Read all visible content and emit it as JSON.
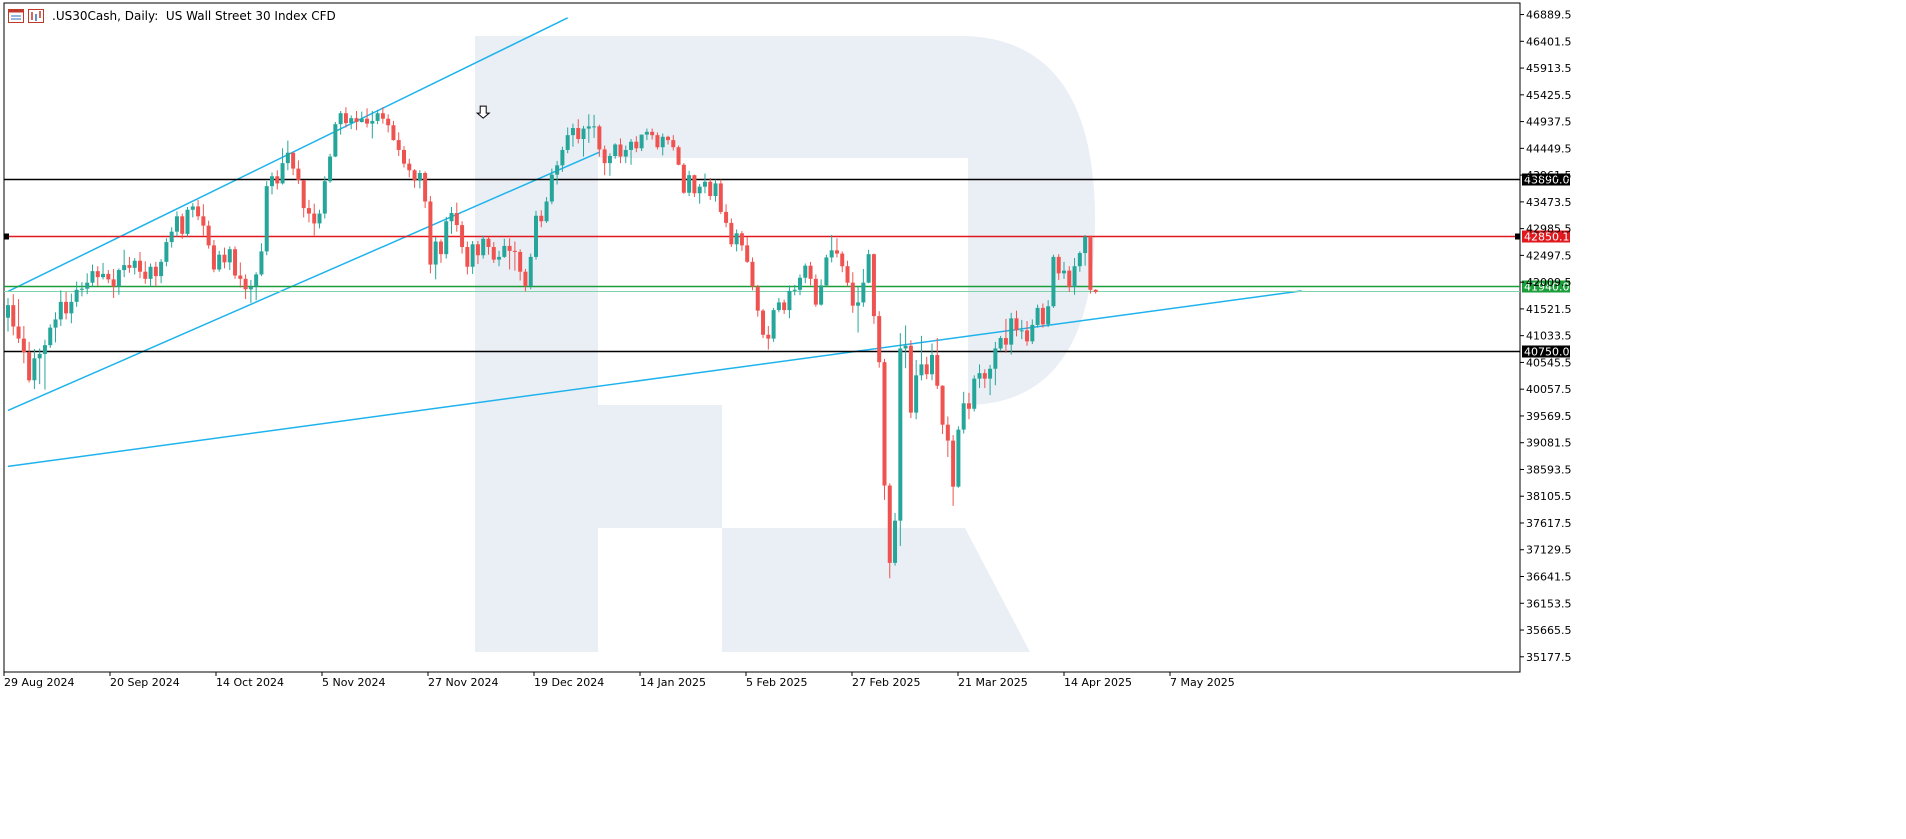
{
  "header": {
    "symbol": ".US30Cash",
    "timeframe": "Daily:",
    "description": "US Wall Street 30 Index CFD",
    "icons": [
      "chart-window-icon",
      "bar-chart-icon"
    ]
  },
  "colors": {
    "bull": "#26a69a",
    "bear": "#ef5350",
    "trend": "#1eb3ec",
    "support_green": "#1b9e3a",
    "support_green_light": "#7ed3a8",
    "level_red": "#e1191f",
    "level_black": "#000000",
    "watermark": "#eaeef5",
    "axis_text": "#000000"
  },
  "chart_data": {
    "type": "candlestick",
    "title": ".US30Cash, Daily:  US Wall Street 30 Index CFD",
    "ylim": [
      34900,
      47100
    ],
    "y_ticks": [
      "46889.5",
      "46401.5",
      "45913.5",
      "45425.5",
      "44937.5",
      "44449.5",
      "43961.5",
      "43473.5",
      "42985.5",
      "42497.5",
      "42009.5",
      "41521.5",
      "41033.5",
      "40545.5",
      "40057.5",
      "39569.5",
      "39081.5",
      "38593.5",
      "38105.5",
      "37617.5",
      "37129.5",
      "36641.5",
      "36153.5",
      "35665.5",
      "35177.5"
    ],
    "x_ticks": [
      "29 Aug 2024",
      "20 Sep 2024",
      "14 Oct 2024",
      "5 Nov 2024",
      "27 Nov 2024",
      "19 Dec 2024",
      "14 Jan 2025",
      "5 Feb 2025",
      "27 Feb 2025",
      "21 Mar 2025",
      "14 Apr 2025",
      "7 May 2025"
    ],
    "horizontal_levels": [
      {
        "value": 43890.0,
        "label": "43890.0",
        "color": "black"
      },
      {
        "value": 42850.1,
        "label": "42850.1",
        "color": "red"
      },
      {
        "value": 41940.0,
        "label": "41940.0",
        "color": "green"
      },
      {
        "value": 40750.0,
        "label": "40750.0",
        "color": "black"
      }
    ],
    "trendlines": [
      {
        "name": "channel-upper",
        "from": [
          0,
          41840
        ],
        "to": [
          106,
          46830
        ]
      },
      {
        "name": "channel-lower",
        "from": [
          0,
          39670
        ],
        "to": [
          112,
          44380
        ]
      },
      {
        "name": "rising-support",
        "from": [
          0,
          38650
        ],
        "to": [
          245,
          41850
        ]
      }
    ],
    "annotation": {
      "type": "down-arrow",
      "index": 90,
      "value": 45000
    },
    "candles": [
      [
        41360,
        41720,
        41110,
        41590
      ],
      [
        41590,
        41790,
        41040,
        41200
      ],
      [
        41200,
        41700,
        40900,
        40980
      ],
      [
        40980,
        41210,
        40530,
        40730
      ],
      [
        40730,
        40920,
        40180,
        40220
      ],
      [
        40220,
        40790,
        40060,
        40620
      ],
      [
        40620,
        40800,
        40150,
        40700
      ],
      [
        40700,
        40960,
        40050,
        40860
      ],
      [
        40860,
        41240,
        40810,
        41180
      ],
      [
        41180,
        41460,
        40910,
        41330
      ],
      [
        41330,
        41860,
        41210,
        41650
      ],
      [
        41650,
        41830,
        41330,
        41440
      ],
      [
        41440,
        41800,
        41260,
        41650
      ],
      [
        41650,
        42020,
        41560,
        41870
      ],
      [
        41870,
        42010,
        41750,
        41890
      ],
      [
        41890,
        42170,
        41790,
        42000
      ],
      [
        42000,
        42330,
        41920,
        42210
      ],
      [
        42210,
        42300,
        41940,
        42100
      ],
      [
        42100,
        42360,
        42060,
        42160
      ],
      [
        42160,
        42230,
        41990,
        42060
      ],
      [
        42060,
        42250,
        41720,
        41930
      ],
      [
        41930,
        42260,
        41780,
        42230
      ],
      [
        42230,
        42600,
        42100,
        42320
      ],
      [
        42320,
        42470,
        42180,
        42270
      ],
      [
        42270,
        42450,
        42150,
        42400
      ],
      [
        42400,
        42560,
        42080,
        42200
      ],
      [
        42200,
        42390,
        41980,
        42070
      ],
      [
        42070,
        42350,
        41920,
        42290
      ],
      [
        42290,
        42380,
        41930,
        42120
      ],
      [
        42120,
        42430,
        41990,
        42380
      ],
      [
        42380,
        42810,
        42300,
        42740
      ],
      [
        42740,
        43010,
        42640,
        42930
      ],
      [
        42930,
        43300,
        42840,
        43210
      ],
      [
        43210,
        43260,
        42800,
        42890
      ],
      [
        42890,
        43380,
        42840,
        43330
      ],
      [
        43330,
        43450,
        43190,
        43390
      ],
      [
        43390,
        43510,
        43140,
        43210
      ],
      [
        43210,
        43430,
        42860,
        43040
      ],
      [
        43040,
        43130,
        42620,
        42680
      ],
      [
        42680,
        42780,
        42190,
        42240
      ],
      [
        42240,
        42580,
        42200,
        42510
      ],
      [
        42510,
        42640,
        42260,
        42370
      ],
      [
        42370,
        42660,
        42230,
        42610
      ],
      [
        42610,
        42660,
        42070,
        42130
      ],
      [
        42130,
        42370,
        41910,
        42070
      ],
      [
        42070,
        42150,
        41700,
        41880
      ],
      [
        41880,
        42050,
        41630,
        41930
      ],
      [
        41930,
        42190,
        41680,
        42150
      ],
      [
        42150,
        42720,
        42120,
        42570
      ],
      [
        42570,
        43850,
        42500,
        43760
      ],
      [
        43760,
        44010,
        43610,
        43940
      ],
      [
        43940,
        44050,
        43700,
        43810
      ],
      [
        43810,
        44450,
        43790,
        44180
      ],
      [
        44180,
        44590,
        44050,
        44370
      ],
      [
        44370,
        44380,
        43960,
        44080
      ],
      [
        44080,
        44230,
        43800,
        43870
      ],
      [
        43870,
        43870,
        43190,
        43360
      ],
      [
        43360,
        43510,
        43100,
        43260
      ],
      [
        43260,
        43440,
        42860,
        43080
      ],
      [
        43080,
        43330,
        42990,
        43260
      ],
      [
        43260,
        43940,
        43170,
        43850
      ],
      [
        43850,
        44350,
        43820,
        44300
      ],
      [
        44300,
        44930,
        44290,
        44890
      ],
      [
        44890,
        45130,
        44700,
        45090
      ],
      [
        45090,
        45200,
        44830,
        44910
      ],
      [
        44910,
        45050,
        44800,
        45000
      ],
      [
        45000,
        45130,
        44780,
        44930
      ],
      [
        44930,
        45120,
        44920,
        44990
      ],
      [
        44990,
        45180,
        44830,
        44900
      ],
      [
        44900,
        45130,
        44630,
        44950
      ],
      [
        44950,
        45150,
        44890,
        45090
      ],
      [
        45090,
        45200,
        44900,
        44990
      ],
      [
        44990,
        45070,
        44740,
        44870
      ],
      [
        44870,
        44950,
        44590,
        44600
      ],
      [
        44600,
        44740,
        44310,
        44420
      ],
      [
        44420,
        44490,
        44100,
        44170
      ],
      [
        44170,
        44260,
        43920,
        44050
      ],
      [
        44050,
        44070,
        43730,
        43860
      ],
      [
        43860,
        44050,
        43720,
        44000
      ],
      [
        44000,
        44030,
        43360,
        43480
      ],
      [
        43480,
        43580,
        42170,
        42330
      ],
      [
        42330,
        42830,
        42060,
        42750
      ],
      [
        42750,
        42790,
        42360,
        42520
      ],
      [
        42520,
        43200,
        42440,
        43120
      ],
      [
        43120,
        43380,
        42890,
        43270
      ],
      [
        43270,
        43460,
        42930,
        43050
      ],
      [
        43050,
        43120,
        42530,
        42650
      ],
      [
        42650,
        42750,
        42150,
        42290
      ],
      [
        42290,
        42760,
        42160,
        42700
      ],
      [
        42700,
        42760,
        42340,
        42500
      ],
      [
        42500,
        42860,
        42440,
        42800
      ],
      [
        42800,
        42840,
        42510,
        42650
      ],
      [
        42650,
        42740,
        42360,
        42420
      ],
      [
        42420,
        42580,
        42300,
        42470
      ],
      [
        42470,
        42800,
        42450,
        42670
      ],
      [
        42670,
        42810,
        42240,
        42580
      ],
      [
        42580,
        42750,
        42220,
        42560
      ],
      [
        42560,
        42610,
        42040,
        42200
      ],
      [
        42200,
        42250,
        41840,
        41940
      ],
      [
        41940,
        42530,
        41880,
        42470
      ],
      [
        42470,
        43310,
        42420,
        43220
      ],
      [
        43220,
        43320,
        43010,
        43120
      ],
      [
        43120,
        43560,
        43090,
        43480
      ],
      [
        43480,
        44080,
        43430,
        43970
      ],
      [
        43970,
        44220,
        43790,
        44140
      ],
      [
        44140,
        44480,
        44020,
        44420
      ],
      [
        44420,
        44830,
        44360,
        44690
      ],
      [
        44690,
        44900,
        44480,
        44820
      ],
      [
        44820,
        44980,
        44540,
        44620
      ],
      [
        44620,
        44860,
        44300,
        44810
      ],
      [
        44810,
        45070,
        44550,
        44850
      ],
      [
        44850,
        45060,
        44640,
        44850
      ],
      [
        44850,
        44880,
        44300,
        44430
      ],
      [
        44430,
        44500,
        43960,
        44180
      ],
      [
        44180,
        44360,
        43950,
        44310
      ],
      [
        44310,
        44540,
        44260,
        44520
      ],
      [
        44520,
        44630,
        44180,
        44300
      ],
      [
        44300,
        44500,
        44180,
        44420
      ],
      [
        44420,
        44620,
        44150,
        44570
      ],
      [
        44570,
        44670,
        44380,
        44450
      ],
      [
        44450,
        44700,
        44400,
        44700
      ],
      [
        44700,
        44810,
        44600,
        44750
      ],
      [
        44750,
        44810,
        44610,
        44690
      ],
      [
        44690,
        44740,
        44430,
        44470
      ],
      [
        44470,
        44720,
        44320,
        44660
      ],
      [
        44660,
        44680,
        44520,
        44600
      ],
      [
        44600,
        44690,
        44410,
        44470
      ],
      [
        44470,
        44500,
        44140,
        44150
      ],
      [
        44150,
        44180,
        43620,
        43640
      ],
      [
        43640,
        44040,
        43580,
        43960
      ],
      [
        43960,
        43970,
        43560,
        43630
      ],
      [
        43630,
        43800,
        43440,
        43750
      ],
      [
        43750,
        43990,
        43630,
        43840
      ],
      [
        43840,
        43910,
        43510,
        43580
      ],
      [
        43580,
        43880,
        43480,
        43810
      ],
      [
        43810,
        43880,
        43250,
        43290
      ],
      [
        43290,
        43430,
        43010,
        43090
      ],
      [
        43090,
        43170,
        42650,
        42700
      ],
      [
        42700,
        42970,
        42570,
        42900
      ],
      [
        42900,
        42940,
        42580,
        42680
      ],
      [
        42680,
        42830,
        42360,
        42380
      ],
      [
        42380,
        42460,
        41860,
        41930
      ],
      [
        41930,
        41960,
        41380,
        41490
      ],
      [
        41490,
        41520,
        40990,
        41050
      ],
      [
        41050,
        41210,
        40780,
        40980
      ],
      [
        40980,
        41540,
        40920,
        41500
      ],
      [
        41500,
        41720,
        41460,
        41640
      ],
      [
        41640,
        41690,
        41430,
        41500
      ],
      [
        41500,
        41950,
        41350,
        41850
      ],
      [
        41850,
        41960,
        41770,
        41870
      ],
      [
        41870,
        42150,
        41770,
        42090
      ],
      [
        42090,
        42350,
        41990,
        42310
      ],
      [
        42310,
        42380,
        41950,
        42070
      ],
      [
        42070,
        42150,
        41560,
        41600
      ],
      [
        41600,
        42060,
        41580,
        41950
      ],
      [
        41950,
        42510,
        41930,
        42460
      ],
      [
        42460,
        42870,
        42370,
        42590
      ],
      [
        42590,
        42810,
        42460,
        42530
      ],
      [
        42530,
        42570,
        42190,
        42300
      ],
      [
        42300,
        42400,
        41930,
        42000
      ],
      [
        42000,
        42190,
        41450,
        41580
      ],
      [
        41580,
        41930,
        41090,
        41640
      ],
      [
        41640,
        42250,
        41560,
        42000
      ],
      [
        42000,
        42600,
        41990,
        42520
      ],
      [
        42520,
        42530,
        41250,
        41390
      ],
      [
        41390,
        41480,
        40450,
        40550
      ],
      [
        40550,
        40610,
        38040,
        38300
      ],
      [
        38300,
        38340,
        36610,
        36890
      ],
      [
        36890,
        37800,
        36840,
        37660
      ],
      [
        37660,
        41080,
        37200,
        40800
      ],
      [
        40800,
        41220,
        40440,
        40850
      ],
      [
        40850,
        40950,
        39530,
        39630
      ],
      [
        39630,
        40590,
        39510,
        40310
      ],
      [
        40310,
        41030,
        40220,
        40510
      ],
      [
        40510,
        40650,
        40240,
        40330
      ],
      [
        40330,
        40890,
        40220,
        40680
      ],
      [
        40680,
        40990,
        40060,
        40120
      ],
      [
        40120,
        40130,
        39240,
        39410
      ],
      [
        39410,
        39560,
        38820,
        39120
      ],
      [
        39120,
        39220,
        37930,
        38280
      ],
      [
        38280,
        39380,
        38260,
        39320
      ],
      [
        39320,
        40010,
        39250,
        39800
      ],
      [
        39800,
        39990,
        39510,
        39700
      ],
      [
        39700,
        40310,
        39650,
        40250
      ],
      [
        40250,
        40510,
        40080,
        40350
      ],
      [
        40350,
        40420,
        40080,
        40250
      ],
      [
        40250,
        40500,
        39950,
        40430
      ],
      [
        40430,
        40920,
        40130,
        40800
      ],
      [
        40800,
        41030,
        40750,
        40990
      ],
      [
        40990,
        41340,
        40720,
        40870
      ],
      [
        40870,
        41450,
        40690,
        41350
      ],
      [
        41350,
        41490,
        41020,
        41130
      ],
      [
        41130,
        41320,
        40970,
        41130
      ],
      [
        41130,
        41300,
        40850,
        40930
      ],
      [
        40930,
        41330,
        40880,
        41230
      ],
      [
        41230,
        41600,
        41180,
        41540
      ],
      [
        41540,
        41620,
        41180,
        41240
      ],
      [
        41240,
        41680,
        41190,
        41570
      ],
      [
        41570,
        42510,
        41540,
        42470
      ],
      [
        42470,
        42520,
        42050,
        42170
      ],
      [
        42170,
        42380,
        42070,
        42220
      ],
      [
        42220,
        42300,
        41830,
        41920
      ],
      [
        41920,
        42450,
        41780,
        42300
      ],
      [
        42300,
        42570,
        42200,
        42540
      ],
      [
        42540,
        42870,
        42310,
        42840
      ],
      [
        42840,
        42860,
        41800,
        41870
      ],
      [
        41870,
        41880,
        41800,
        41830
      ]
    ]
  }
}
